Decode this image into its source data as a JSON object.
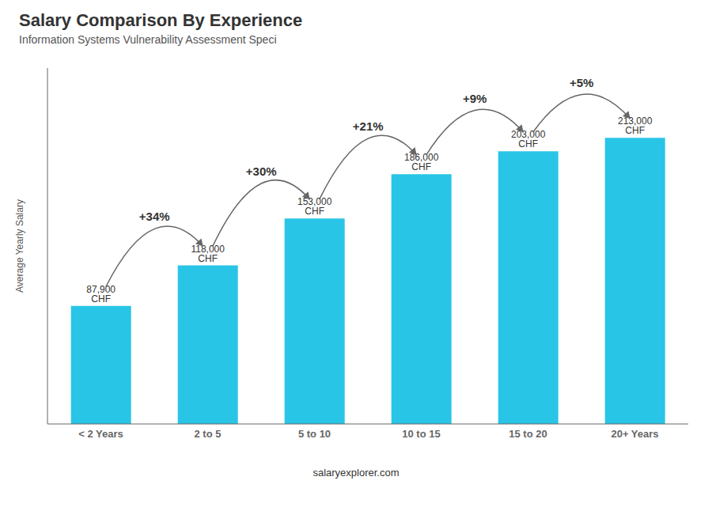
{
  "chart_data": {
    "type": "bar",
    "title": "Salary Comparison By Experience",
    "subtitle": "Information Systems Vulnerability Assessment Speci",
    "categories": [
      "< 2 Years",
      "2 to 5",
      "5 to 10",
      "10 to 15",
      "15 to 20",
      "20+ Years"
    ],
    "values": [
      87900,
      118000,
      153000,
      186000,
      203000,
      213000
    ],
    "value_labels": [
      "87,900 CHF",
      "118,000 CHF",
      "153,000 CHF",
      "186,000 CHF",
      "203,000 CHF",
      "213,000 CHF"
    ],
    "data_labels": true,
    "color": "#29c5e6",
    "ylabel": "Average Yearly Salary",
    "ylim": [
      0,
      265000
    ],
    "tick_labels": "x",
    "annotations": [
      "+34%",
      "+30%",
      "+21%",
      "+9%",
      "+5%",
      "salaryexplorer.com"
    ]
  }
}
